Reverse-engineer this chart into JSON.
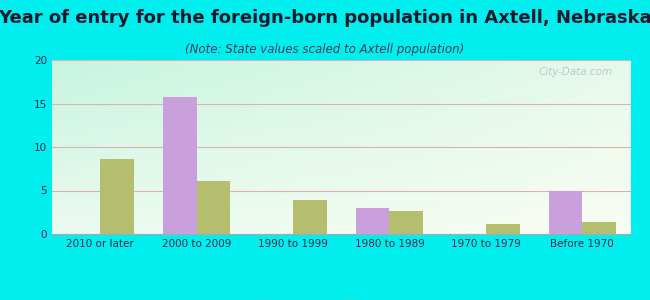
{
  "title": "Year of entry for the foreign-born population in Axtell, Nebraska",
  "subtitle": "(Note: State values scaled to Axtell population)",
  "categories": [
    "2010 or later",
    "2000 to 2009",
    "1990 to 1999",
    "1980 to 1989",
    "1970 to 1979",
    "Before 1970"
  ],
  "axtell_values": [
    0,
    15.7,
    0,
    3.0,
    0,
    5.0
  ],
  "nebraska_values": [
    8.6,
    6.1,
    3.9,
    2.6,
    1.2,
    1.4
  ],
  "axtell_color": "#c9a0dc",
  "nebraska_color": "#b5bd6e",
  "background_outer": "#00eeee",
  "ylim": [
    0,
    20
  ],
  "yticks": [
    0,
    5,
    10,
    15,
    20
  ],
  "bar_width": 0.35,
  "title_fontsize": 13,
  "subtitle_fontsize": 8.5,
  "tick_fontsize": 7.5,
  "legend_fontsize": 9,
  "watermark": "City-Data.com",
  "title_color": "#1a1a2e",
  "subtitle_color": "#3a3a5c",
  "tick_color": "#2a2a4a"
}
